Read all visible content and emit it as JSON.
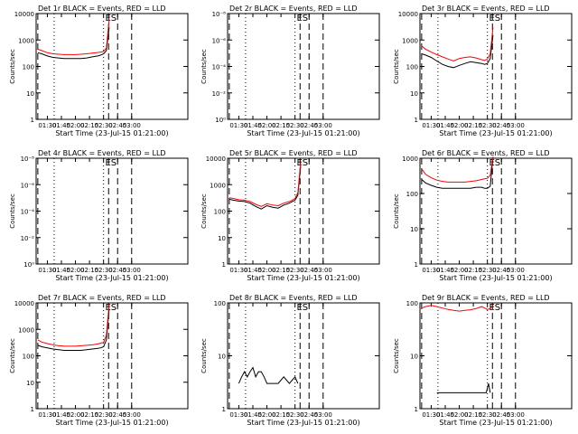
{
  "x_axis": {
    "label": "Start Time (23-Jul-15 01:21:00)",
    "ticks": [
      "01:30",
      "01:45",
      "02:00",
      "02:15",
      "02:30",
      "02:45",
      "03:00"
    ],
    "range": [
      0.3,
      3.0
    ],
    "tick_values": [
      0.5,
      0.75,
      1.0,
      1.25,
      1.5,
      1.75,
      2.0
    ]
  },
  "y_label": "Counts/sec",
  "colors": {
    "events": "#000000",
    "lld": "#ff0000"
  },
  "panels": [
    {
      "title": "Det 1r BLACK = Events, RED = LLD",
      "ytick_labels": [
        "1",
        "10",
        "100",
        "1000",
        "10000"
      ],
      "annotations": [
        "E",
        "S"
      ],
      "chart_data": {
        "type": "line",
        "yscale": "log",
        "ylim": [
          1,
          10000
        ],
        "series": [
          {
            "color": "black",
            "x": [
              0.33,
              0.4,
              0.5,
              0.6,
              0.7,
              0.8,
              0.9,
              1.0,
              1.1,
              1.2,
              1.3,
              1.4,
              1.45,
              1.5,
              1.55,
              1.6
            ],
            "y": [
              330,
              300,
              250,
              220,
              210,
              200,
              200,
              200,
              200,
              210,
              230,
              250,
              270,
              300,
              400,
              3000
            ]
          },
          {
            "color": "red",
            "x": [
              0.33,
              0.4,
              0.5,
              0.6,
              0.7,
              0.8,
              0.9,
              1.0,
              1.1,
              1.2,
              1.3,
              1.4,
              1.45,
              1.5,
              1.55,
              1.6
            ],
            "y": [
              450,
              400,
              330,
              300,
              290,
              280,
              280,
              280,
              290,
              300,
              320,
              340,
              350,
              370,
              500,
              6000
            ]
          }
        ]
      }
    },
    {
      "title": "Det 2r BLACK = Events, RED = LLD",
      "ytick_labels": [
        "10⁰",
        "10⁻²",
        "10⁻⁴",
        "10⁻⁶",
        "10⁻⁸"
      ],
      "annotations": [
        "E",
        "S"
      ],
      "chart_data": {
        "type": "line",
        "yscale": "log",
        "ylim": [
          1e-09,
          1
        ],
        "series": []
      }
    },
    {
      "title": "Det 3r BLACK = Events, RED = LLD",
      "ytick_labels": [
        "1",
        "10",
        "100",
        "1000",
        "10000"
      ],
      "annotations": [
        "E",
        "S"
      ],
      "chart_data": {
        "type": "line",
        "yscale": "log",
        "ylim": [
          1,
          10000
        ],
        "series": [
          {
            "color": "black",
            "x": [
              0.33,
              0.4,
              0.5,
              0.6,
              0.7,
              0.8,
              0.9,
              1.0,
              1.1,
              1.2,
              1.3,
              1.4,
              1.45,
              1.5,
              1.55,
              1.6
            ],
            "y": [
              300,
              270,
              220,
              160,
              120,
              100,
              90,
              110,
              130,
              150,
              140,
              130,
              120,
              130,
              200,
              1500
            ]
          },
          {
            "color": "red",
            "x": [
              0.33,
              0.4,
              0.5,
              0.6,
              0.7,
              0.8,
              0.9,
              1.0,
              1.1,
              1.2,
              1.3,
              1.4,
              1.45,
              1.5,
              1.55,
              1.6
            ],
            "y": [
              600,
              450,
              350,
              280,
              230,
              190,
              160,
              200,
              220,
              230,
              210,
              180,
              170,
              190,
              300,
              3000
            ]
          }
        ]
      }
    },
    {
      "title": "Det 4r BLACK = Events, RED = LLD",
      "ytick_labels": [
        "10⁰",
        "10⁻²",
        "10⁻⁴",
        "10⁻⁶",
        "10⁻⁸"
      ],
      "annotations": [
        "E",
        "S"
      ],
      "chart_data": {
        "type": "line",
        "yscale": "log",
        "ylim": [
          1e-09,
          1
        ],
        "series": []
      }
    },
    {
      "title": "Det 5r BLACK = Events, RED = LLD",
      "ytick_labels": [
        "1",
        "10",
        "100",
        "1000",
        "10000"
      ],
      "annotations": [
        "E",
        "S"
      ],
      "chart_data": {
        "type": "line",
        "yscale": "log",
        "ylim": [
          1,
          10000
        ],
        "series": [
          {
            "color": "black",
            "x": [
              0.33,
              0.4,
              0.5,
              0.6,
              0.7,
              0.8,
              0.9,
              1.0,
              1.1,
              1.2,
              1.3,
              1.4,
              1.45,
              1.5,
              1.55,
              1.6
            ],
            "y": [
              280,
              260,
              240,
              230,
              200,
              150,
              120,
              160,
              140,
              130,
              170,
              200,
              230,
              260,
              400,
              5000
            ]
          },
          {
            "color": "red",
            "x": [
              0.33,
              0.4,
              0.5,
              0.6,
              0.7,
              0.8,
              0.9,
              1.0,
              1.1,
              1.2,
              1.3,
              1.4,
              1.45,
              1.5,
              1.55,
              1.6
            ],
            "y": [
              320,
              300,
              270,
              260,
              230,
              180,
              150,
              190,
              170,
              160,
              200,
              230,
              260,
              300,
              500,
              7000
            ]
          }
        ]
      }
    },
    {
      "title": "Det 6r BLACK = Events, RED = LLD",
      "ytick_labels": [
        "1",
        "10",
        "100",
        "1000"
      ],
      "annotations": [
        "E",
        "S"
      ],
      "chart_data": {
        "type": "line",
        "yscale": "log",
        "ylim": [
          1,
          1000
        ],
        "series": [
          {
            "color": "black",
            "x": [
              0.33,
              0.4,
              0.5,
              0.6,
              0.7,
              0.8,
              0.9,
              1.0,
              1.1,
              1.2,
              1.3,
              1.4,
              1.45,
              1.5,
              1.55,
              1.6
            ],
            "y": [
              250,
              200,
              170,
              150,
              140,
              140,
              140,
              140,
              140,
              140,
              150,
              150,
              140,
              140,
              160,
              1100
            ]
          },
          {
            "color": "red",
            "x": [
              0.33,
              0.4,
              0.5,
              0.6,
              0.7,
              0.8,
              0.9,
              1.0,
              1.1,
              1.2,
              1.3,
              1.4,
              1.45,
              1.5,
              1.55,
              1.6
            ],
            "y": [
              500,
              350,
              280,
              240,
              220,
              210,
              210,
              210,
              210,
              220,
              230,
              250,
              260,
              270,
              330,
              1100
            ]
          }
        ]
      }
    },
    {
      "title": "Det 7r BLACK = Events, RED = LLD",
      "ytick_labels": [
        "1",
        "10",
        "100",
        "1000",
        "10000"
      ],
      "annotations": [
        "E",
        "S"
      ],
      "chart_data": {
        "type": "line",
        "yscale": "log",
        "ylim": [
          1,
          10000
        ],
        "series": [
          {
            "color": "black",
            "x": [
              0.33,
              0.4,
              0.5,
              0.6,
              0.7,
              0.8,
              0.9,
              1.0,
              1.1,
              1.2,
              1.3,
              1.4,
              1.45,
              1.5,
              1.55,
              1.6
            ],
            "y": [
              250,
              220,
              200,
              180,
              170,
              160,
              160,
              160,
              160,
              170,
              180,
              190,
              200,
              220,
              400,
              6000
            ]
          },
          {
            "color": "red",
            "x": [
              0.33,
              0.4,
              0.5,
              0.6,
              0.7,
              0.8,
              0.9,
              1.0,
              1.1,
              1.2,
              1.3,
              1.4,
              1.45,
              1.5,
              1.55,
              1.6
            ],
            "y": [
              400,
              330,
              290,
              260,
              240,
              230,
              230,
              230,
              240,
              250,
              260,
              280,
              300,
              320,
              600,
              9000
            ]
          }
        ]
      }
    },
    {
      "title": "Det 8r BLACK = Events, RED = LLD",
      "ytick_labels": [
        "1",
        "10",
        "100"
      ],
      "annotations": [
        "E",
        "S"
      ],
      "chart_data": {
        "type": "line",
        "yscale": "log",
        "ylim": [
          1,
          100
        ],
        "series": [
          {
            "color": "black",
            "x": [
              0.5,
              0.55,
              0.6,
              0.65,
              0.7,
              0.75,
              0.8,
              0.85,
              0.9,
              0.95,
              1.0,
              1.1,
              1.2,
              1.3,
              1.4,
              1.5,
              1.55
            ],
            "y": [
              3,
              4,
              5,
              4,
              5,
              6,
              4,
              5,
              5,
              4,
              3,
              3,
              3,
              4,
              3,
              4,
              3
            ]
          }
        ]
      }
    },
    {
      "title": "Det 9r BLACK = Events, RED = LLD",
      "ytick_labels": [
        "1",
        "10",
        "100"
      ],
      "annotations": [
        "E",
        "S"
      ],
      "chart_data": {
        "type": "line",
        "yscale": "log",
        "ylim": [
          1,
          100
        ],
        "series": [
          {
            "color": "red",
            "x": [
              0.33,
              0.4,
              0.5,
              0.6,
              0.7,
              0.8,
              0.9,
              1.0,
              1.1,
              1.2,
              1.3,
              1.4,
              1.45,
              1.5,
              1.55,
              1.6
            ],
            "y": [
              80,
              85,
              90,
              85,
              80,
              75,
              72,
              70,
              72,
              74,
              78,
              85,
              80,
              75,
              78,
              90
            ]
          },
          {
            "color": "black",
            "x": [
              0.6,
              0.62,
              1.45,
              1.48,
              1.52,
              1.55
            ],
            "y": [
              2,
              2,
              2,
              2,
              3,
              2
            ]
          }
        ]
      }
    }
  ]
}
